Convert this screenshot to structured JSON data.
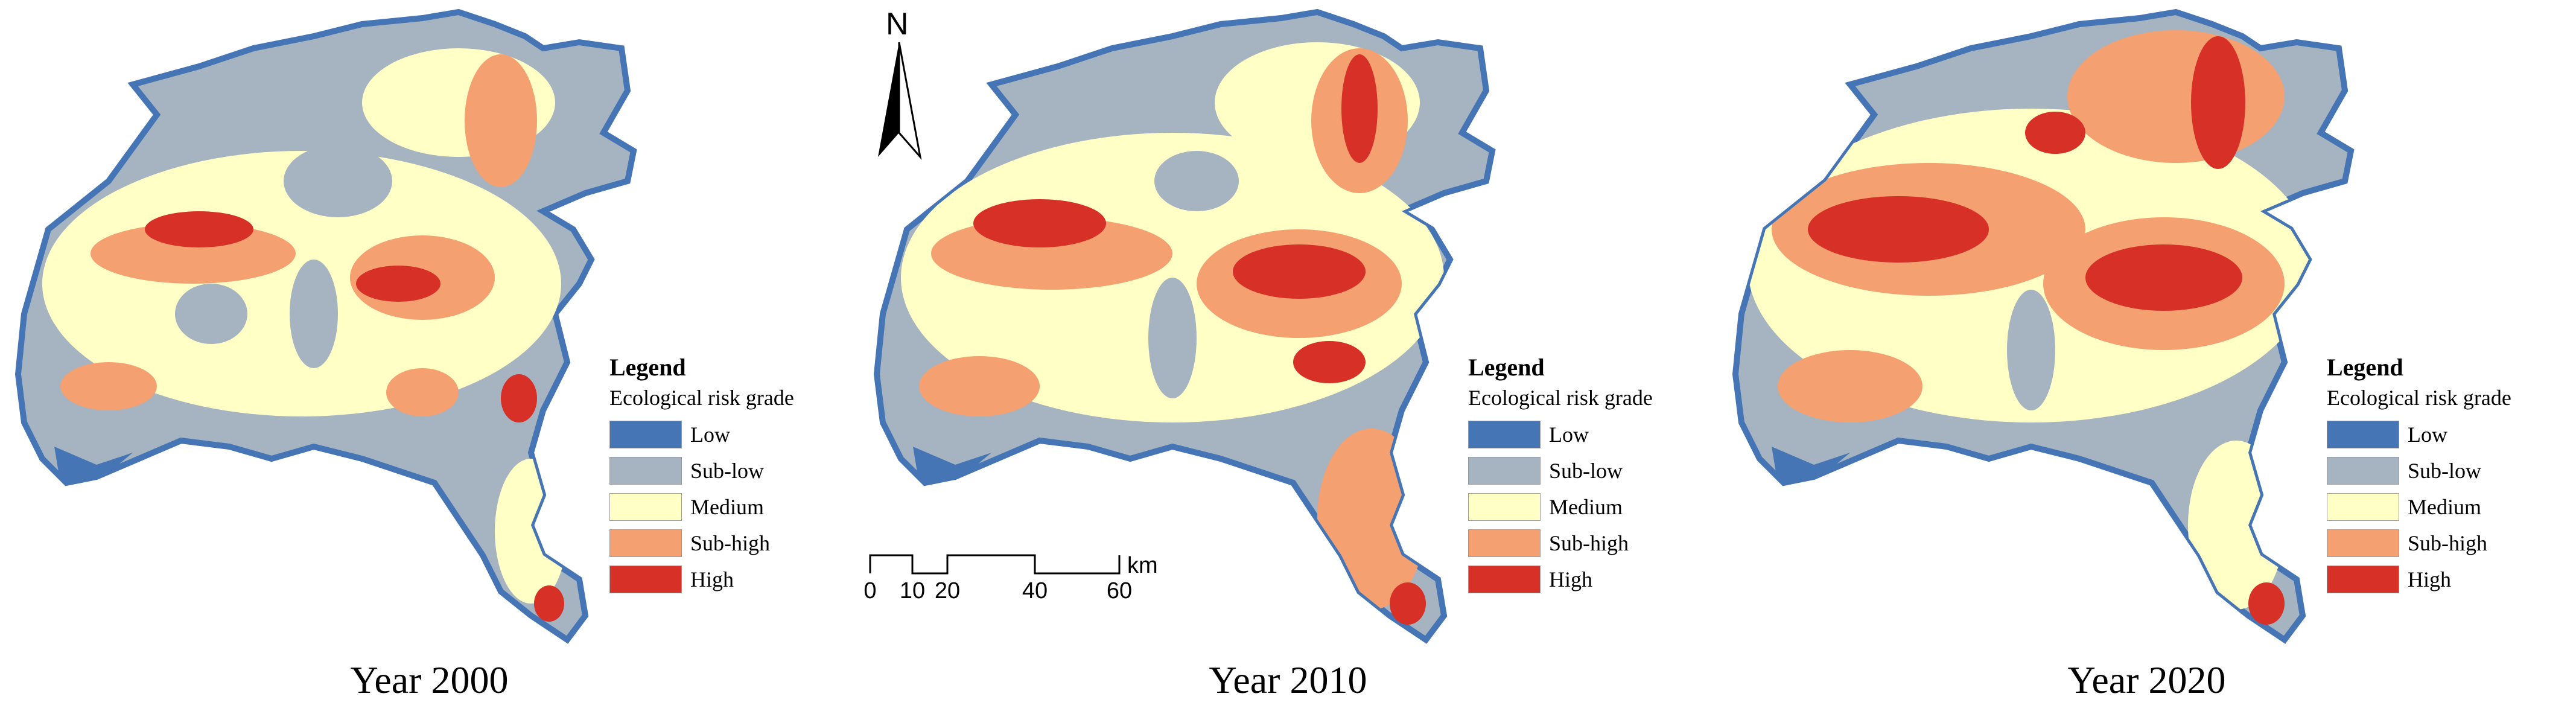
{
  "legend": {
    "title": "Legend",
    "subtitle": "Ecological risk grade",
    "classes": [
      {
        "label": "Low",
        "color": "#4575b4"
      },
      {
        "label": "Sub-low",
        "color": "#a5b4c0"
      },
      {
        "label": "Medium",
        "color": "#ffffc6"
      },
      {
        "label": "Sub-high",
        "color": "#f4a070"
      },
      {
        "label": "High",
        "color": "#d73027"
      }
    ]
  },
  "maps": [
    {
      "year_label": "Year 2000"
    },
    {
      "year_label": "Year 2010"
    },
    {
      "year_label": "Year 2020"
    }
  ],
  "north_arrow": {
    "letter": "N"
  },
  "scale_bar": {
    "ticks": [
      "0",
      "10",
      "20",
      "40",
      "60"
    ],
    "unit": "km"
  }
}
